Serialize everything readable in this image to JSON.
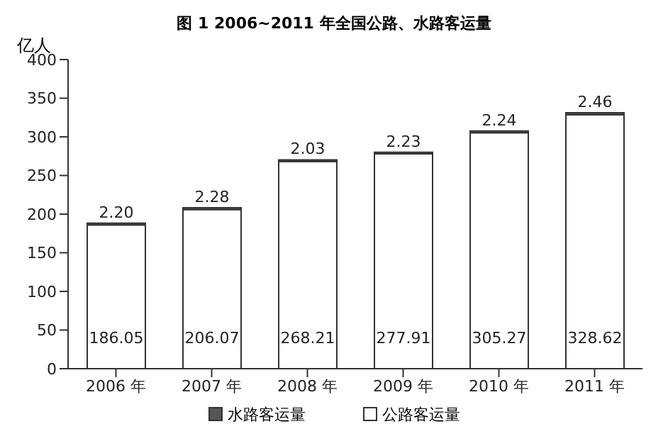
{
  "chart_data": {
    "type": "bar",
    "title": "图 1  2006~2011 年全国公路、水路客运量",
    "ylabel": "亿人",
    "categories": [
      "2006 年",
      "2007 年",
      "2008 年",
      "2009 年",
      "2010 年",
      "2011 年"
    ],
    "series": [
      {
        "name": "公路客运量",
        "color": "#ffffff",
        "values": [
          186.05,
          206.07,
          268.21,
          277.91,
          305.27,
          328.62
        ],
        "value_labels": [
          "186.05",
          "206.07",
          "268.21",
          "277.91",
          "305.27",
          "328.62"
        ]
      },
      {
        "name": "水路客运量",
        "color": "#555555",
        "values": [
          2.2,
          2.28,
          2.03,
          2.23,
          2.24,
          2.46
        ],
        "value_labels": [
          "2.20",
          "2.28",
          "2.03",
          "2.23",
          "2.24",
          "2.46"
        ]
      }
    ],
    "stacked": true,
    "ylim": [
      0,
      400
    ],
    "yticks": [
      0,
      50,
      100,
      150,
      200,
      250,
      300,
      350,
      400
    ],
    "legend": "bottom"
  }
}
